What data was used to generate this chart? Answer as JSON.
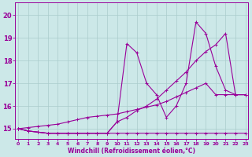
{
  "xlabel": "Windchill (Refroidissement éolien,°C)",
  "bg_color": "#cce8e8",
  "grid_color": "#aacccc",
  "line_color": "#990099",
  "xlim": [
    -0.3,
    23.3
  ],
  "ylim": [
    14.55,
    20.55
  ],
  "xticks": [
    0,
    1,
    2,
    3,
    4,
    5,
    6,
    7,
    8,
    9,
    10,
    11,
    12,
    13,
    14,
    15,
    16,
    17,
    18,
    19,
    20,
    21,
    22,
    23
  ],
  "yticks": [
    15,
    16,
    17,
    18,
    19,
    20
  ],
  "line1_x": [
    0,
    1,
    2,
    3,
    4,
    5,
    6,
    7,
    8,
    9,
    10,
    11,
    12,
    13,
    14,
    15,
    16,
    17,
    18,
    19,
    20,
    21,
    22,
    23
  ],
  "line1_y": [
    15.0,
    14.9,
    14.85,
    14.8,
    14.8,
    14.8,
    14.8,
    14.8,
    14.8,
    14.8,
    14.8,
    14.8,
    14.8,
    14.8,
    14.8,
    14.8,
    14.8,
    14.8,
    14.8,
    14.8,
    14.8,
    14.8,
    14.8,
    14.8
  ],
  "line2_x": [
    0,
    1,
    2,
    3,
    4,
    5,
    6,
    7,
    8,
    9,
    10,
    11,
    12,
    13,
    14,
    15,
    16,
    17,
    18,
    19,
    20,
    21,
    22,
    23
  ],
  "line2_y": [
    15.0,
    14.9,
    14.85,
    14.8,
    14.8,
    14.8,
    14.8,
    14.8,
    14.8,
    14.8,
    15.3,
    18.75,
    18.35,
    17.0,
    16.5,
    15.5,
    16.0,
    17.0,
    19.7,
    19.2,
    17.75,
    16.7,
    16.5,
    16.5
  ],
  "line3_x": [
    0,
    1,
    2,
    3,
    4,
    5,
    6,
    7,
    8,
    9,
    10,
    11,
    12,
    13,
    14,
    15,
    16,
    17,
    18,
    19,
    20,
    21,
    22,
    23
  ],
  "line3_y": [
    15.0,
    14.9,
    14.85,
    14.8,
    14.8,
    14.8,
    14.8,
    14.8,
    14.8,
    14.8,
    15.3,
    15.5,
    15.8,
    16.0,
    16.3,
    16.7,
    17.1,
    17.5,
    18.0,
    18.4,
    18.7,
    19.2,
    16.5,
    16.5
  ],
  "line_diag_x": [
    0,
    1,
    2,
    3,
    4,
    5,
    6,
    7,
    8,
    9,
    10,
    11,
    12,
    13,
    14,
    15,
    16,
    17,
    18,
    19,
    20,
    21,
    22,
    23
  ],
  "line_diag_y": [
    15.0,
    15.05,
    15.1,
    15.15,
    15.2,
    15.3,
    15.4,
    15.5,
    15.55,
    15.6,
    15.65,
    15.75,
    15.85,
    15.95,
    16.05,
    16.2,
    16.4,
    16.6,
    16.8,
    17.0,
    16.5,
    16.5,
    16.5,
    16.5
  ]
}
